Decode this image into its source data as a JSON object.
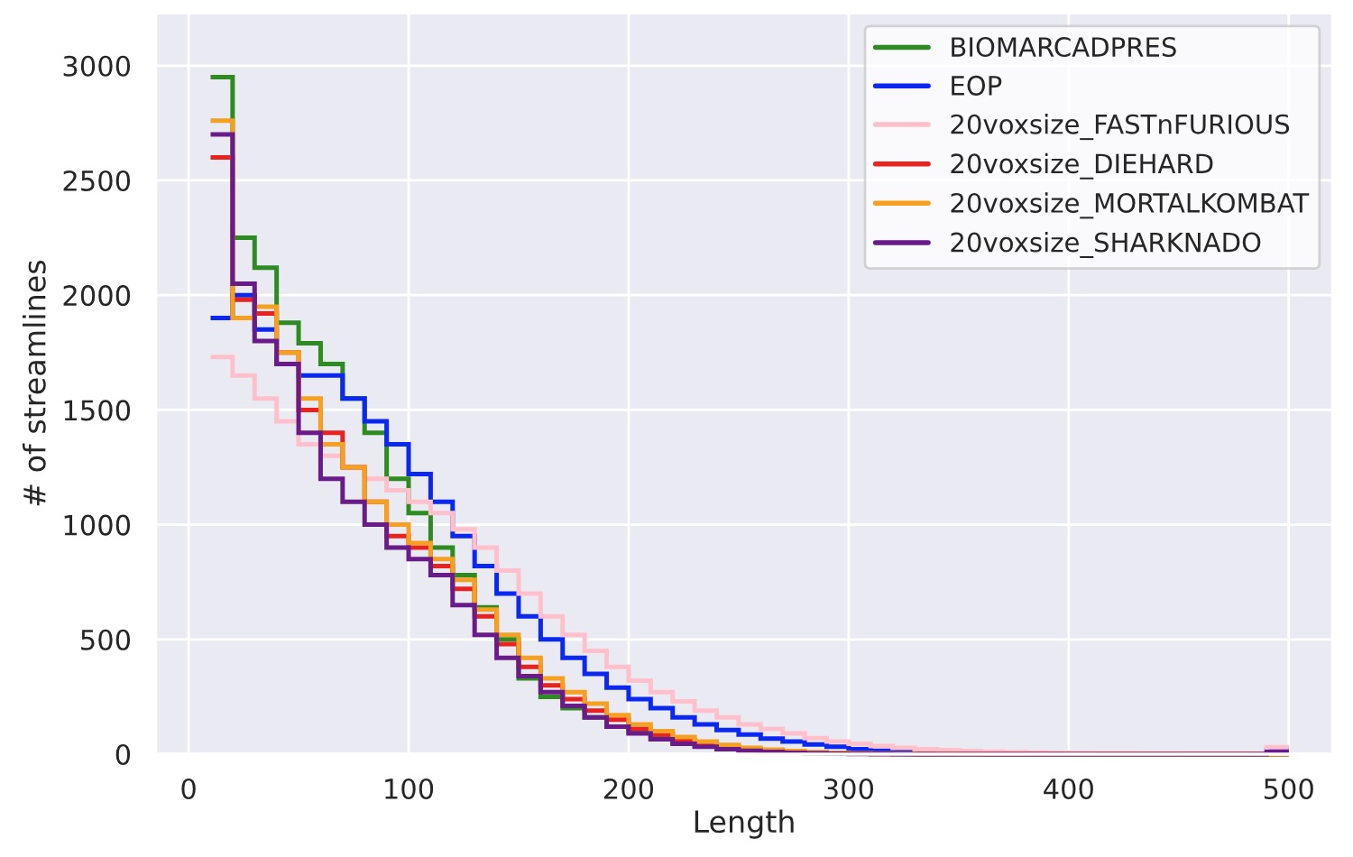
{
  "chart_data": {
    "type": "histogram",
    "xlabel": "Length",
    "ylabel": "# of streamlines",
    "bins": [
      10,
      20,
      30,
      40,
      50,
      60,
      70,
      80,
      90,
      100,
      110,
      120,
      130,
      140,
      150,
      160,
      170,
      180,
      190,
      200,
      210,
      220,
      230,
      240,
      250,
      260,
      270,
      280,
      290,
      300,
      310,
      320,
      330,
      340,
      350,
      360,
      370,
      380,
      390,
      400,
      410,
      420,
      430,
      440,
      450,
      460,
      470,
      480,
      490,
      500
    ],
    "series": [
      {
        "name": "BIOMARCADPRES",
        "color": "#2e8b22",
        "values": [
          2950,
          2250,
          2120,
          1880,
          1790,
          1700,
          1550,
          1400,
          1200,
          1050,
          900,
          780,
          640,
          500,
          330,
          250,
          200,
          160,
          120,
          95,
          70,
          50,
          35,
          25,
          18,
          12,
          8,
          5,
          3,
          2,
          1,
          1,
          0,
          0,
          0,
          0,
          0,
          0,
          0,
          0,
          0,
          0,
          0,
          0,
          0,
          0,
          0,
          0,
          0
        ]
      },
      {
        "name": "EOP",
        "color": "#0a28f0",
        "values": [
          1900,
          2000,
          1850,
          1700,
          1650,
          1650,
          1550,
          1450,
          1350,
          1220,
          1100,
          950,
          820,
          700,
          600,
          500,
          420,
          350,
          290,
          240,
          200,
          160,
          130,
          105,
          85,
          68,
          55,
          42,
          32,
          22,
          15,
          10,
          5,
          3,
          2,
          1,
          1,
          0,
          0,
          0,
          0,
          0,
          0,
          0,
          0,
          0,
          0,
          0,
          20
        ]
      },
      {
        "name": "20voxsize_FASTnFURIOUS",
        "color": "#ffc0cb",
        "values": [
          1730,
          1650,
          1550,
          1450,
          1350,
          1300,
          1250,
          1200,
          1150,
          1100,
          1050,
          980,
          900,
          800,
          700,
          600,
          520,
          450,
          380,
          320,
          270,
          230,
          190,
          160,
          130,
          110,
          90,
          70,
          55,
          45,
          35,
          28,
          22,
          18,
          14,
          11,
          9,
          7,
          5,
          4,
          3,
          3,
          2,
          2,
          1,
          1,
          1,
          1,
          30
        ]
      },
      {
        "name": "20voxsize_DIEHARD",
        "color": "#e8231f",
        "values": [
          2600,
          1980,
          1920,
          1750,
          1500,
          1400,
          1250,
          1100,
          950,
          900,
          820,
          720,
          600,
          480,
          380,
          300,
          240,
          190,
          150,
          110,
          85,
          62,
          45,
          32,
          22,
          15,
          10,
          6,
          4,
          2,
          1,
          1,
          0,
          0,
          0,
          0,
          0,
          0,
          0,
          0,
          0,
          0,
          0,
          0,
          0,
          0,
          0,
          0,
          0
        ]
      },
      {
        "name": "20voxsize_MORTALKOMBAT",
        "color": "#f5a020",
        "values": [
          2760,
          1900,
          1950,
          1750,
          1550,
          1350,
          1250,
          1100,
          1000,
          920,
          850,
          760,
          630,
          520,
          420,
          330,
          270,
          220,
          170,
          130,
          100,
          75,
          55,
          40,
          28,
          20,
          14,
          9,
          6,
          4,
          3,
          2,
          1,
          1,
          0,
          0,
          0,
          0,
          0,
          0,
          0,
          0,
          0,
          0,
          0,
          0,
          0,
          0,
          0
        ]
      },
      {
        "name": "20voxsize_SHARKNADO",
        "color": "#6a1b8a",
        "values": [
          2700,
          2050,
          1800,
          1700,
          1400,
          1200,
          1100,
          1000,
          900,
          850,
          780,
          650,
          520,
          420,
          340,
          270,
          210,
          160,
          120,
          90,
          65,
          45,
          32,
          22,
          15,
          10,
          6,
          4,
          2,
          1,
          1,
          0,
          0,
          0,
          0,
          0,
          0,
          0,
          0,
          0,
          0,
          0,
          0,
          0,
          0,
          0,
          0,
          0,
          10
        ]
      }
    ],
    "xlim": [
      -15,
      520
    ],
    "ylim": [
      0,
      3230
    ],
    "xticks": [
      0,
      100,
      200,
      300,
      400,
      500
    ],
    "yticks": [
      0,
      500,
      1000,
      1500,
      2000,
      2500,
      3000
    ],
    "grid": true,
    "legend": "top right"
  }
}
